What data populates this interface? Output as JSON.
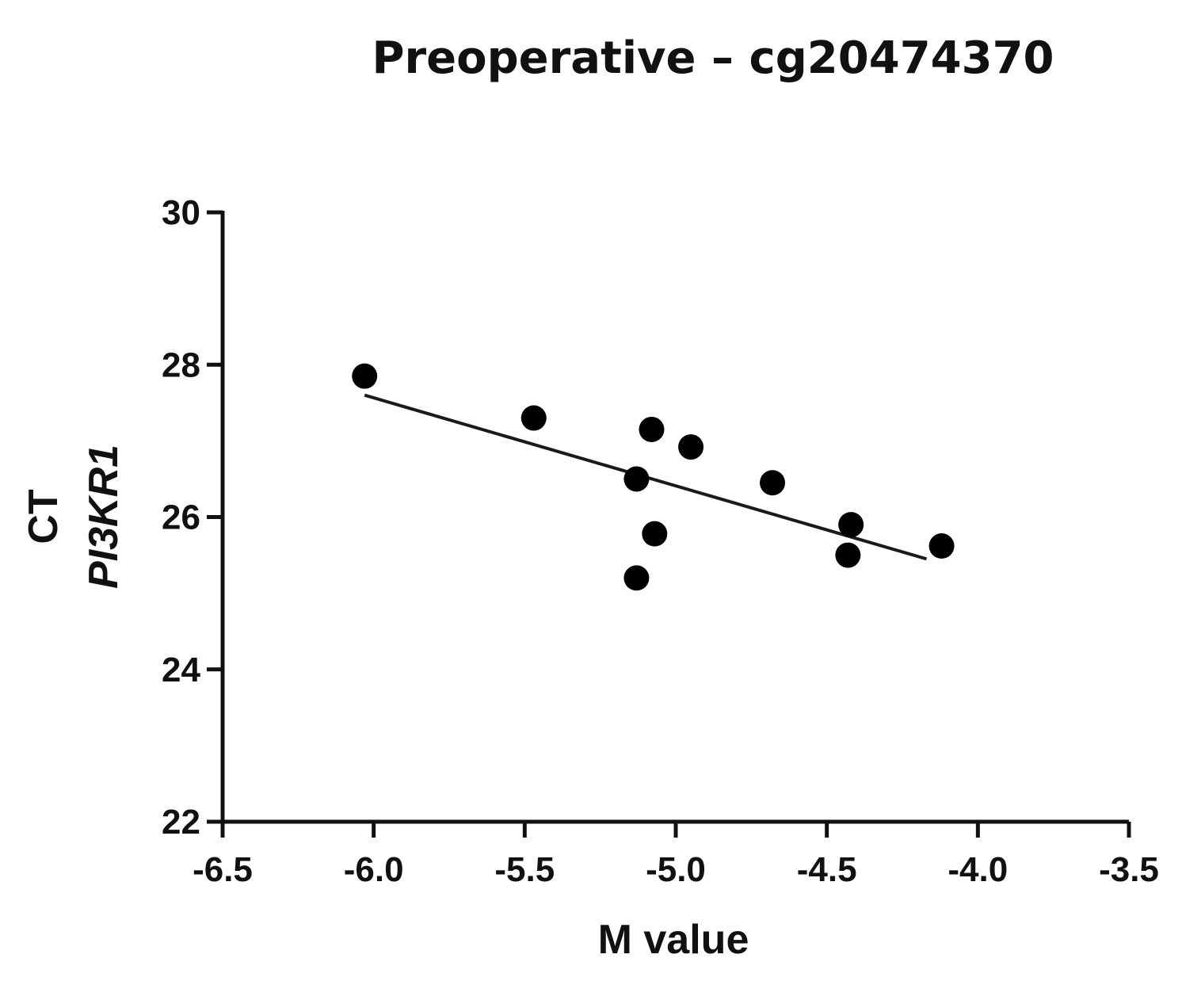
{
  "chart_data": {
    "type": "scatter",
    "title": "Preoperative – cg20474370",
    "xlabel": "M value",
    "ylabel_line1": "CT",
    "ylabel_line2": "PI3KR1",
    "xlim": [
      -6.5,
      -3.5
    ],
    "ylim": [
      22,
      30
    ],
    "xticks": [
      -6.5,
      -6.0,
      -5.5,
      -5.0,
      -4.5,
      -4.0,
      -3.5
    ],
    "xtick_labels": [
      "-6.5",
      "-6.0",
      "-5.5",
      "-5.0",
      "-4.5",
      "-4.0",
      "-3.5"
    ],
    "yticks": [
      22,
      24,
      26,
      28,
      30
    ],
    "ytick_labels": [
      "22",
      "24",
      "26",
      "28",
      "30"
    ],
    "grid": false,
    "points": [
      {
        "x": -6.03,
        "y": 27.85
      },
      {
        "x": -5.47,
        "y": 27.3
      },
      {
        "x": -5.08,
        "y": 27.15
      },
      {
        "x": -4.95,
        "y": 26.92
      },
      {
        "x": -5.13,
        "y": 26.5
      },
      {
        "x": -4.68,
        "y": 26.45
      },
      {
        "x": -5.07,
        "y": 25.78
      },
      {
        "x": -5.13,
        "y": 25.2
      },
      {
        "x": -4.42,
        "y": 25.9
      },
      {
        "x": -4.43,
        "y": 25.5
      },
      {
        "x": -4.12,
        "y": 25.62
      }
    ],
    "regression_line": {
      "x1": -6.03,
      "y1": 27.6,
      "x2": -4.17,
      "y2": 25.45
    },
    "colors": {
      "marker": "#000000",
      "line": "#1a1a1a",
      "axis": "#111111"
    }
  }
}
